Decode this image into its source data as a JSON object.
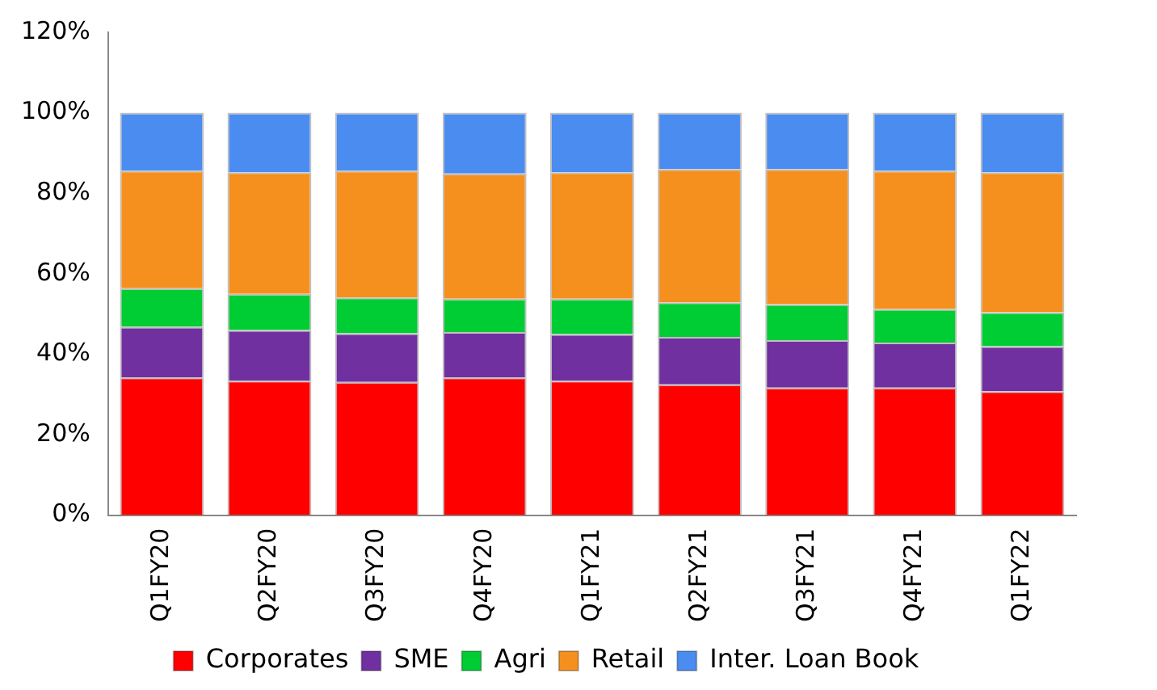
{
  "chart_data": {
    "type": "bar",
    "stacked": true,
    "legend": "bottom",
    "grid": false,
    "categories": [
      "Q1FY20",
      "Q2FY20",
      "Q3FY20",
      "Q4FY20",
      "Q1FY21",
      "Q2FY21",
      "Q3FY21",
      "Q4FY21",
      "Q1FY22"
    ],
    "ylim": [
      0,
      120
    ],
    "yticks": [
      {
        "value": 0,
        "label": "0%"
      },
      {
        "value": 20,
        "label": "20%"
      },
      {
        "value": 40,
        "label": "40%"
      },
      {
        "value": 60,
        "label": "60%"
      },
      {
        "value": 80,
        "label": "80%"
      },
      {
        "value": 100,
        "label": "100%"
      },
      {
        "value": 120,
        "label": "120%"
      }
    ],
    "series": [
      {
        "name": "Corporates",
        "color": "#ff0000",
        "values": [
          34.2,
          33.4,
          33.1,
          34.2,
          33.4,
          32.5,
          31.7,
          31.7,
          30.8
        ]
      },
      {
        "name": "SME",
        "color": "#7030a0",
        "values": [
          12.6,
          12.6,
          12.1,
          11.3,
          11.6,
          11.8,
          11.8,
          11.2,
          11.2
        ]
      },
      {
        "name": "Agri",
        "color": "#00cc33",
        "values": [
          9.6,
          9.0,
          8.9,
          8.3,
          8.8,
          8.6,
          8.9,
          8.3,
          8.4
        ]
      },
      {
        "name": "Retail",
        "color": "#f5901e",
        "values": [
          29.2,
          30.2,
          31.5,
          31.1,
          31.4,
          33.1,
          33.6,
          34.4,
          34.8
        ]
      },
      {
        "name": "Inter. Loan Book",
        "color": "#4a8cf0",
        "values": [
          14.4,
          14.8,
          14.4,
          15.1,
          14.8,
          14.0,
          14.0,
          14.4,
          14.8
        ]
      }
    ]
  }
}
